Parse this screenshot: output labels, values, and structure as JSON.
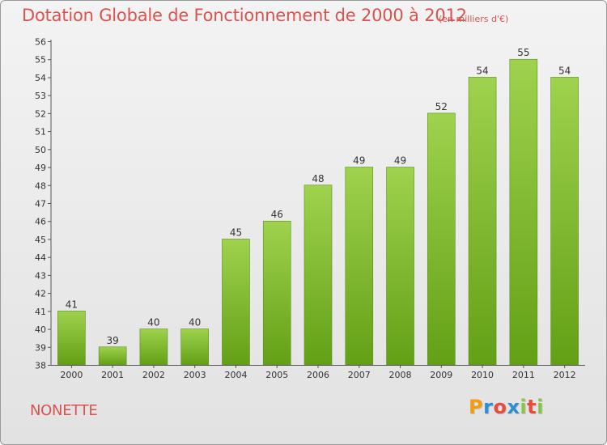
{
  "title": "Dotation Globale de Fonctionnement de 2000 à 2012",
  "subtitle": "(en milliers d'€)",
  "town": "NONETTE",
  "logo": {
    "letters": [
      "P",
      "r",
      "o",
      "x",
      "i",
      "t",
      "i"
    ],
    "colors": [
      "#f39c12",
      "#2c8fd1",
      "#e74c3c",
      "#2c8fd1",
      "#8bc34a",
      "#e74c3c",
      "#8bc34a"
    ]
  },
  "colors": {
    "bar_top": "#9fd24e",
    "bar_bottom": "#63a016",
    "accent": "#d9534f"
  },
  "chart_data": {
    "type": "bar",
    "title": "Dotation Globale de Fonctionnement de 2000 à 2012",
    "xlabel": "",
    "ylabel": "(en milliers d'€)",
    "categories": [
      "2000",
      "2001",
      "2002",
      "2003",
      "2004",
      "2005",
      "2006",
      "2007",
      "2008",
      "2009",
      "2010",
      "2011",
      "2012"
    ],
    "values": [
      41,
      39,
      40,
      40,
      45,
      46,
      48,
      49,
      49,
      52,
      54,
      55,
      54
    ],
    "ylim": [
      38,
      56
    ],
    "yticks": [
      38,
      39,
      40,
      41,
      42,
      43,
      44,
      45,
      46,
      47,
      48,
      49,
      50,
      51,
      52,
      53,
      54,
      55,
      56
    ],
    "grid": false
  }
}
